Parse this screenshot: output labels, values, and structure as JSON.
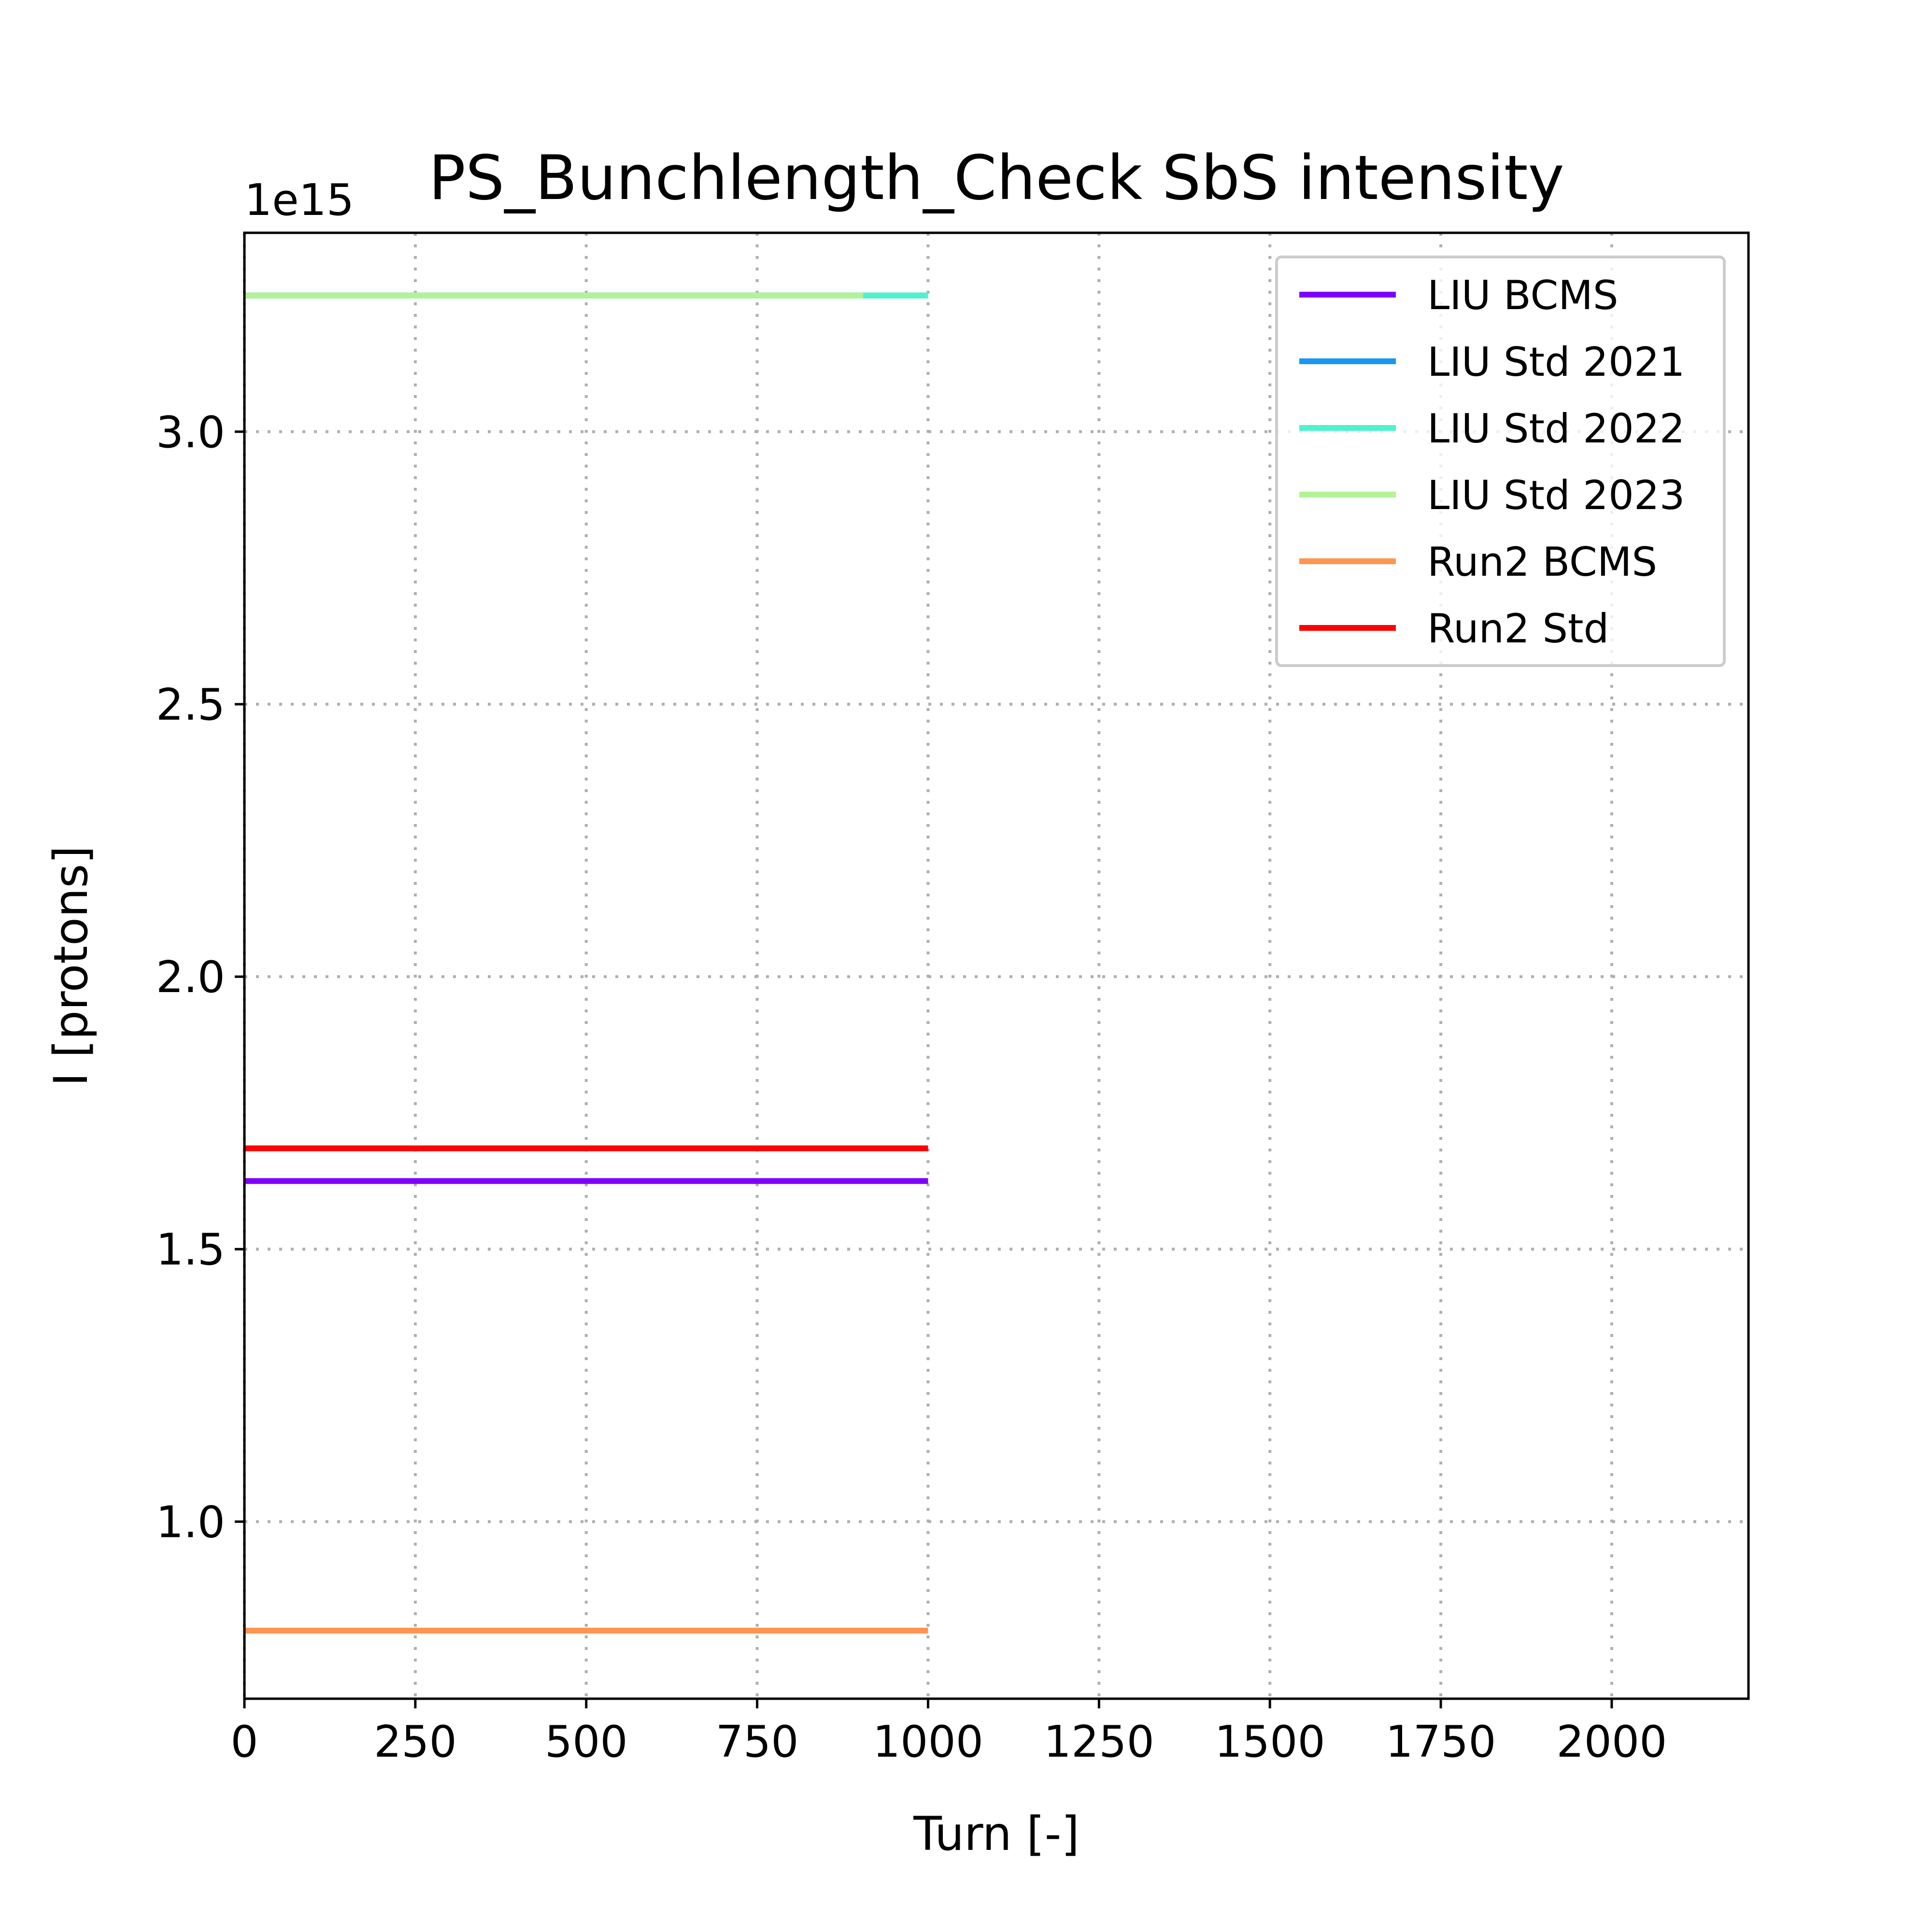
{
  "chart_data": {
    "type": "line",
    "title": "PS_Bunchlength_Check SbS intensity",
    "xlabel": "Turn [-]",
    "ylabel": "I [protons]",
    "y_offset_text": "1e15",
    "xlim": [
      0,
      2200
    ],
    "ylim": [
      0.675,
      3.365
    ],
    "x_ticks": [
      0,
      250,
      500,
      750,
      1000,
      1250,
      1500,
      1750,
      2000
    ],
    "x_tick_labels": [
      "0",
      "250",
      "500",
      "750",
      "1000",
      "1250",
      "1500",
      "1750",
      "2000"
    ],
    "y_ticks": [
      1.0,
      1.5,
      2.0,
      2.5,
      3.0
    ],
    "y_tick_labels": [
      "1.0",
      "1.5",
      "2.0",
      "2.5",
      "3.0"
    ],
    "y_scale": 1000000000000000.0,
    "grid": true,
    "grid_style": "dotted",
    "legend_position": "top-right",
    "series": [
      {
        "name": "LIU BCMS",
        "color": "#8000ff",
        "x": [
          0,
          1000
        ],
        "y": [
          1.625,
          1.625
        ]
      },
      {
        "name": "LIU Std 2021",
        "color": "#1996f3",
        "x": [
          0,
          1000
        ],
        "y": [
          3.25,
          3.25
        ]
      },
      {
        "name": "LIU Std 2022",
        "color": "#4df3ce",
        "x": [
          0,
          1000
        ],
        "y": [
          3.25,
          3.25
        ]
      },
      {
        "name": "LIU Std 2023",
        "color": "#b2f396",
        "x": [
          0,
          905
        ],
        "y": [
          3.25,
          3.25
        ]
      },
      {
        "name": "Run2 BCMS",
        "color": "#ff964f",
        "x": [
          0,
          1000
        ],
        "y": [
          0.8,
          0.8
        ]
      },
      {
        "name": "Run2 Std",
        "color": "#ff0000",
        "x": [
          0,
          1000
        ],
        "y": [
          1.685,
          1.685
        ]
      }
    ]
  }
}
